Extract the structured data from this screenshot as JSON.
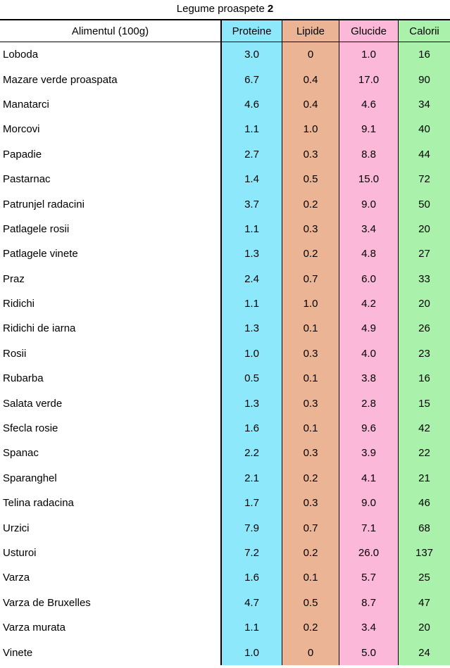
{
  "title": "Legume proaspete",
  "page_number": "2",
  "columns": {
    "name": "Alimentul (100g)",
    "protein": "Proteine",
    "lipid": "Lipide",
    "glucide": "Glucide",
    "calorii": "Calorii"
  },
  "colors": {
    "protein": "#8ee8fb",
    "lipid": "#ebb595",
    "glucide": "#fbb8d9",
    "calorii": "#aaf2ac"
  },
  "rows": [
    {
      "name": "Loboda",
      "p": "3.0",
      "l": "0",
      "g": "1.0",
      "c": "16"
    },
    {
      "name": "Mazare verde proaspata",
      "p": "6.7",
      "l": "0.4",
      "g": "17.0",
      "c": "90"
    },
    {
      "name": "Manatarci",
      "p": "4.6",
      "l": "0.4",
      "g": "4.6",
      "c": "34"
    },
    {
      "name": "Morcovi",
      "p": "1.1",
      "l": "1.0",
      "g": "9.1",
      "c": "40"
    },
    {
      "name": "Papadie",
      "p": "2.7",
      "l": "0.3",
      "g": "8.8",
      "c": "44"
    },
    {
      "name": "Pastarnac",
      "p": "1.4",
      "l": "0.5",
      "g": "15.0",
      "c": "72"
    },
    {
      "name": "Patrunjel radacini",
      "p": "3.7",
      "l": "0.2",
      "g": "9.0",
      "c": "50"
    },
    {
      "name": "Patlagele rosii",
      "p": "1.1",
      "l": "0.3",
      "g": "3.4",
      "c": "20"
    },
    {
      "name": "Patlagele vinete",
      "p": "1.3",
      "l": "0.2",
      "g": "4.8",
      "c": "27"
    },
    {
      "name": "Praz",
      "p": "2.4",
      "l": "0.7",
      "g": "6.0",
      "c": "33"
    },
    {
      "name": "Ridichi",
      "p": "1.1",
      "l": "1.0",
      "g": "4.2",
      "c": "20"
    },
    {
      "name": "Ridichi de iarna",
      "p": "1.3",
      "l": "0.1",
      "g": "4.9",
      "c": "26"
    },
    {
      "name": "Rosii",
      "p": "1.0",
      "l": "0.3",
      "g": "4.0",
      "c": "23"
    },
    {
      "name": "Rubarba",
      "p": "0.5",
      "l": "0.1",
      "g": "3.8",
      "c": "16"
    },
    {
      "name": "Salata verde",
      "p": "1.3",
      "l": "0.3",
      "g": "2.8",
      "c": "15"
    },
    {
      "name": "Sfecla rosie",
      "p": "1.6",
      "l": "0.1",
      "g": "9.6",
      "c": "42"
    },
    {
      "name": "Spanac",
      "p": "2.2",
      "l": "0.3",
      "g": "3.9",
      "c": "22"
    },
    {
      "name": "Sparanghel",
      "p": "2.1",
      "l": "0.2",
      "g": "4.1",
      "c": "21"
    },
    {
      "name": "Telina radacina",
      "p": "1.7",
      "l": "0.3",
      "g": "9.0",
      "c": "46"
    },
    {
      "name": "Urzici",
      "p": "7.9",
      "l": "0.7",
      "g": "7.1",
      "c": "68"
    },
    {
      "name": "Usturoi",
      "p": "7.2",
      "l": "0.2",
      "g": "26.0",
      "c": "137"
    },
    {
      "name": "Varza",
      "p": "1.6",
      "l": "0.1",
      "g": "5.7",
      "c": "25"
    },
    {
      "name": "Varza de Bruxelles",
      "p": "4.7",
      "l": "0.5",
      "g": "8.7",
      "c": "47"
    },
    {
      "name": "Varza murata",
      "p": "1.1",
      "l": "0.2",
      "g": "3.4",
      "c": "20"
    },
    {
      "name": "Vinete",
      "p": "1.0",
      "l": "0",
      "g": "5.0",
      "c": "24"
    }
  ]
}
